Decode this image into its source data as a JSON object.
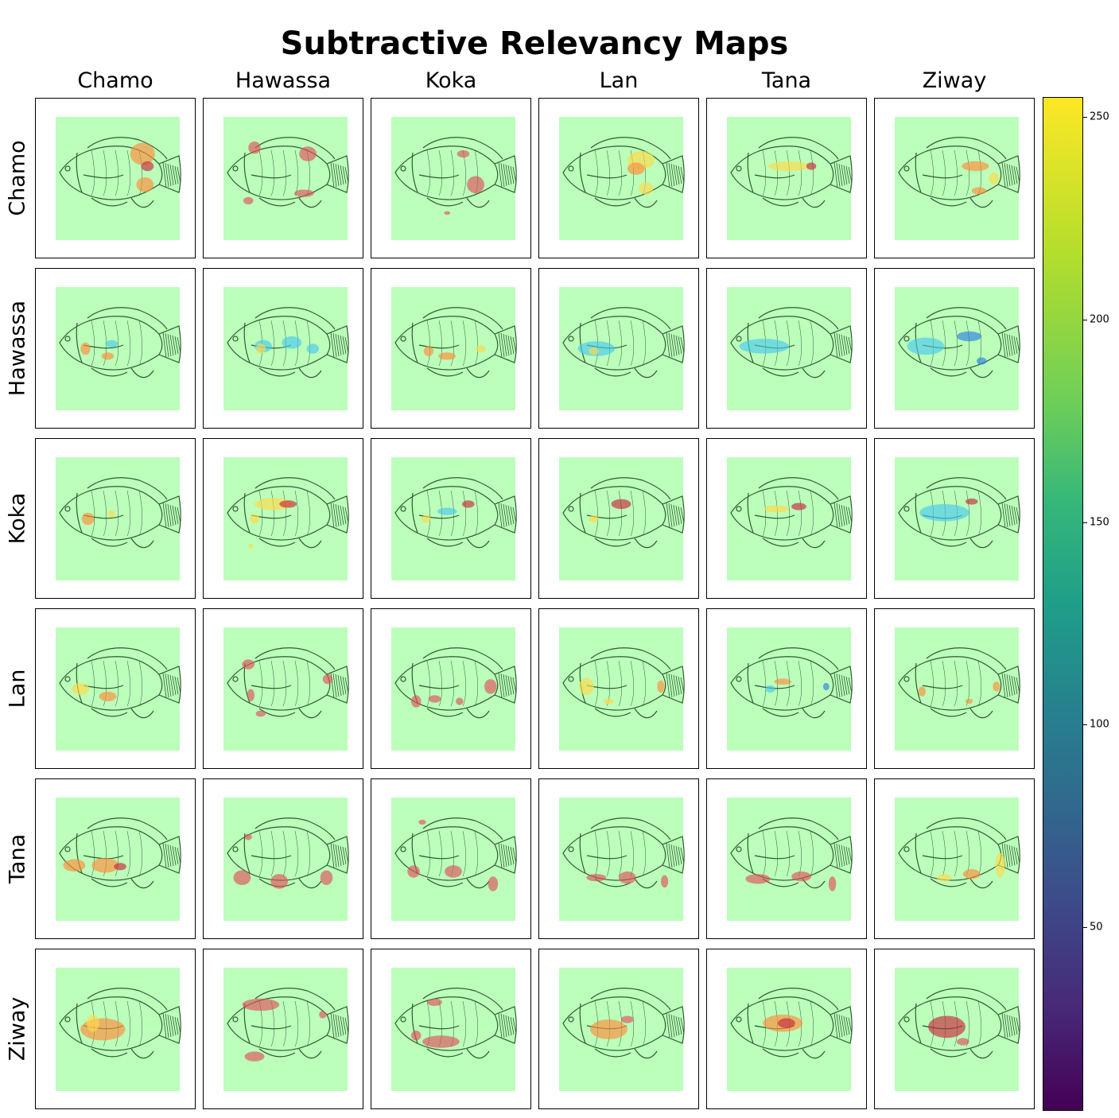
{
  "chart_data": {
    "type": "heatmap",
    "title": "Subtractive Relevancy Maps",
    "columns": [
      "Chamo",
      "Hawassa",
      "Koka",
      "Lan",
      "Tana",
      "Ziway"
    ],
    "rows": [
      "Chamo",
      "Hawassa",
      "Koka",
      "Lan",
      "Tana",
      "Ziway"
    ],
    "colorbar": {
      "colormap": "viridis",
      "range": [
        5,
        255
      ],
      "ticks": [
        50,
        100,
        150,
        200,
        250
      ]
    },
    "cell_overlay": {
      "background": "#bbffbb",
      "image": "fish drawing"
    },
    "cells": [
      [
        [
          {
            "r": "warm",
            "x": 0.7,
            "y": 0.3,
            "w": 0.2,
            "h": 0.18
          },
          {
            "r": "warm",
            "x": 0.72,
            "y": 0.55,
            "w": 0.14,
            "h": 0.12
          },
          {
            "r": "hot",
            "x": 0.74,
            "y": 0.4,
            "w": 0.1,
            "h": 0.08
          }
        ],
        [
          {
            "r": "red",
            "x": 0.25,
            "y": 0.25,
            "w": 0.1,
            "h": 0.1
          },
          {
            "r": "red",
            "x": 0.68,
            "y": 0.3,
            "w": 0.14,
            "h": 0.12
          },
          {
            "r": "red",
            "x": 0.65,
            "y": 0.62,
            "w": 0.16,
            "h": 0.06
          },
          {
            "r": "red",
            "x": 0.2,
            "y": 0.68,
            "w": 0.08,
            "h": 0.06
          }
        ],
        [
          {
            "r": "red",
            "x": 0.68,
            "y": 0.55,
            "w": 0.14,
            "h": 0.14
          },
          {
            "r": "red",
            "x": 0.58,
            "y": 0.3,
            "w": 0.1,
            "h": 0.06
          },
          {
            "r": "red",
            "x": 0.45,
            "y": 0.78,
            "w": 0.05,
            "h": 0.03
          }
        ],
        [
          {
            "r": "yellow",
            "x": 0.66,
            "y": 0.35,
            "w": 0.22,
            "h": 0.15
          },
          {
            "r": "yellow",
            "x": 0.7,
            "y": 0.58,
            "w": 0.12,
            "h": 0.1
          },
          {
            "r": "warm",
            "x": 0.62,
            "y": 0.42,
            "w": 0.14,
            "h": 0.1
          }
        ],
        [
          {
            "r": "yellow",
            "x": 0.5,
            "y": 0.4,
            "w": 0.34,
            "h": 0.08
          },
          {
            "r": "hot",
            "x": 0.68,
            "y": 0.4,
            "w": 0.08,
            "h": 0.06
          }
        ],
        [
          {
            "r": "warm",
            "x": 0.65,
            "y": 0.4,
            "w": 0.22,
            "h": 0.08
          },
          {
            "r": "warm",
            "x": 0.68,
            "y": 0.6,
            "w": 0.12,
            "h": 0.06
          },
          {
            "r": "yellow",
            "x": 0.8,
            "y": 0.5,
            "w": 0.08,
            "h": 0.1
          }
        ]
      ],
      [
        [
          {
            "r": "warm",
            "x": 0.24,
            "y": 0.5,
            "w": 0.08,
            "h": 0.1
          },
          {
            "r": "warm",
            "x": 0.42,
            "y": 0.56,
            "w": 0.1,
            "h": 0.06
          },
          {
            "r": "cyan",
            "x": 0.45,
            "y": 0.46,
            "w": 0.1,
            "h": 0.06
          }
        ],
        [
          {
            "r": "cyan",
            "x": 0.32,
            "y": 0.48,
            "w": 0.14,
            "h": 0.1
          },
          {
            "r": "cyan",
            "x": 0.55,
            "y": 0.45,
            "w": 0.16,
            "h": 0.1
          },
          {
            "r": "yellow",
            "x": 0.3,
            "y": 0.5,
            "w": 0.08,
            "h": 0.08
          },
          {
            "r": "cyan",
            "x": 0.72,
            "y": 0.5,
            "w": 0.1,
            "h": 0.08
          }
        ],
        [
          {
            "r": "warm",
            "x": 0.3,
            "y": 0.52,
            "w": 0.08,
            "h": 0.08
          },
          {
            "r": "warm",
            "x": 0.45,
            "y": 0.56,
            "w": 0.14,
            "h": 0.06
          },
          {
            "r": "yellow",
            "x": 0.72,
            "y": 0.5,
            "w": 0.08,
            "h": 0.06
          }
        ],
        [
          {
            "r": "cyan",
            "x": 0.3,
            "y": 0.5,
            "w": 0.3,
            "h": 0.12
          },
          {
            "r": "yellow",
            "x": 0.28,
            "y": 0.52,
            "w": 0.08,
            "h": 0.06
          }
        ],
        [
          {
            "r": "cyan",
            "x": 0.3,
            "y": 0.48,
            "w": 0.4,
            "h": 0.12
          }
        ],
        [
          {
            "r": "cyan",
            "x": 0.25,
            "y": 0.48,
            "w": 0.3,
            "h": 0.14
          },
          {
            "r": "blue",
            "x": 0.6,
            "y": 0.4,
            "w": 0.2,
            "h": 0.08
          },
          {
            "r": "blue",
            "x": 0.7,
            "y": 0.6,
            "w": 0.08,
            "h": 0.06
          }
        ]
      ],
      [
        [
          {
            "r": "warm",
            "x": 0.26,
            "y": 0.5,
            "w": 0.1,
            "h": 0.1
          },
          {
            "r": "yellow",
            "x": 0.45,
            "y": 0.46,
            "w": 0.06,
            "h": 0.06
          }
        ],
        [
          {
            "r": "yellow",
            "x": 0.4,
            "y": 0.38,
            "w": 0.3,
            "h": 0.1
          },
          {
            "r": "hot",
            "x": 0.52,
            "y": 0.38,
            "w": 0.14,
            "h": 0.06
          },
          {
            "r": "yellow",
            "x": 0.25,
            "y": 0.5,
            "w": 0.08,
            "h": 0.08
          },
          {
            "r": "yellow",
            "x": 0.22,
            "y": 0.72,
            "w": 0.04,
            "h": 0.04
          }
        ],
        [
          {
            "r": "hot",
            "x": 0.62,
            "y": 0.38,
            "w": 0.1,
            "h": 0.06
          },
          {
            "r": "cyan",
            "x": 0.45,
            "y": 0.44,
            "w": 0.16,
            "h": 0.06
          },
          {
            "r": "yellow",
            "x": 0.28,
            "y": 0.5,
            "w": 0.08,
            "h": 0.06
          }
        ],
        [
          {
            "r": "hot",
            "x": 0.5,
            "y": 0.38,
            "w": 0.16,
            "h": 0.08
          },
          {
            "r": "yellow",
            "x": 0.28,
            "y": 0.5,
            "w": 0.08,
            "h": 0.06
          }
        ],
        [
          {
            "r": "hot",
            "x": 0.58,
            "y": 0.4,
            "w": 0.12,
            "h": 0.06
          },
          {
            "r": "yellow",
            "x": 0.4,
            "y": 0.42,
            "w": 0.2,
            "h": 0.06
          }
        ],
        [
          {
            "r": "cyan",
            "x": 0.4,
            "y": 0.45,
            "w": 0.4,
            "h": 0.14
          },
          {
            "r": "hot",
            "x": 0.62,
            "y": 0.36,
            "w": 0.1,
            "h": 0.05
          }
        ]
      ],
      [
        [
          {
            "r": "yellow",
            "x": 0.2,
            "y": 0.5,
            "w": 0.14,
            "h": 0.1
          },
          {
            "r": "warm",
            "x": 0.42,
            "y": 0.56,
            "w": 0.14,
            "h": 0.08
          }
        ],
        [
          {
            "r": "red",
            "x": 0.2,
            "y": 0.3,
            "w": 0.1,
            "h": 0.08
          },
          {
            "r": "red",
            "x": 0.84,
            "y": 0.42,
            "w": 0.08,
            "h": 0.08
          },
          {
            "r": "red",
            "x": 0.3,
            "y": 0.7,
            "w": 0.08,
            "h": 0.05
          },
          {
            "r": "red",
            "x": 0.22,
            "y": 0.55,
            "w": 0.06,
            "h": 0.1
          }
        ],
        [
          {
            "r": "red",
            "x": 0.8,
            "y": 0.48,
            "w": 0.1,
            "h": 0.12
          },
          {
            "r": "red",
            "x": 0.2,
            "y": 0.6,
            "w": 0.08,
            "h": 0.1
          },
          {
            "r": "red",
            "x": 0.35,
            "y": 0.58,
            "w": 0.1,
            "h": 0.06
          },
          {
            "r": "red",
            "x": 0.55,
            "y": 0.6,
            "w": 0.06,
            "h": 0.06
          }
        ],
        [
          {
            "r": "yellow",
            "x": 0.22,
            "y": 0.48,
            "w": 0.12,
            "h": 0.14
          },
          {
            "r": "warm",
            "x": 0.82,
            "y": 0.48,
            "w": 0.06,
            "h": 0.1
          },
          {
            "r": "yellow",
            "x": 0.4,
            "y": 0.6,
            "w": 0.08,
            "h": 0.05
          }
        ],
        [
          {
            "r": "warm",
            "x": 0.45,
            "y": 0.44,
            "w": 0.14,
            "h": 0.05
          },
          {
            "r": "blue",
            "x": 0.8,
            "y": 0.48,
            "w": 0.05,
            "h": 0.06
          },
          {
            "r": "cyan",
            "x": 0.35,
            "y": 0.5,
            "w": 0.08,
            "h": 0.06
          }
        ],
        [
          {
            "r": "warm",
            "x": 0.22,
            "y": 0.52,
            "w": 0.06,
            "h": 0.08
          },
          {
            "r": "warm",
            "x": 0.82,
            "y": 0.48,
            "w": 0.06,
            "h": 0.08
          },
          {
            "r": "warm",
            "x": 0.6,
            "y": 0.6,
            "w": 0.06,
            "h": 0.04
          }
        ]
      ],
      [
        [
          {
            "r": "warm",
            "x": 0.15,
            "y": 0.55,
            "w": 0.18,
            "h": 0.1
          },
          {
            "r": "warm",
            "x": 0.4,
            "y": 0.55,
            "w": 0.22,
            "h": 0.12
          },
          {
            "r": "hot",
            "x": 0.52,
            "y": 0.56,
            "w": 0.1,
            "h": 0.06
          }
        ],
        [
          {
            "r": "red",
            "x": 0.15,
            "y": 0.65,
            "w": 0.14,
            "h": 0.12
          },
          {
            "r": "red",
            "x": 0.45,
            "y": 0.68,
            "w": 0.14,
            "h": 0.12
          },
          {
            "r": "red",
            "x": 0.83,
            "y": 0.65,
            "w": 0.1,
            "h": 0.12
          },
          {
            "r": "red",
            "x": 0.2,
            "y": 0.32,
            "w": 0.06,
            "h": 0.05
          }
        ],
        [
          {
            "r": "red",
            "x": 0.18,
            "y": 0.6,
            "w": 0.1,
            "h": 0.1
          },
          {
            "r": "red",
            "x": 0.5,
            "y": 0.6,
            "w": 0.14,
            "h": 0.1
          },
          {
            "r": "red",
            "x": 0.82,
            "y": 0.7,
            "w": 0.08,
            "h": 0.12
          },
          {
            "r": "red",
            "x": 0.25,
            "y": 0.2,
            "w": 0.06,
            "h": 0.04
          }
        ],
        [
          {
            "r": "red",
            "x": 0.3,
            "y": 0.65,
            "w": 0.16,
            "h": 0.06
          },
          {
            "r": "red",
            "x": 0.55,
            "y": 0.65,
            "w": 0.14,
            "h": 0.1
          },
          {
            "r": "red",
            "x": 0.85,
            "y": 0.68,
            "w": 0.06,
            "h": 0.1
          }
        ],
        [
          {
            "r": "red",
            "x": 0.25,
            "y": 0.66,
            "w": 0.2,
            "h": 0.08
          },
          {
            "r": "red",
            "x": 0.6,
            "y": 0.64,
            "w": 0.16,
            "h": 0.08
          },
          {
            "r": "red",
            "x": 0.85,
            "y": 0.7,
            "w": 0.06,
            "h": 0.12
          }
        ],
        [
          {
            "r": "yellow",
            "x": 0.85,
            "y": 0.55,
            "w": 0.08,
            "h": 0.2
          },
          {
            "r": "warm",
            "x": 0.62,
            "y": 0.62,
            "w": 0.14,
            "h": 0.08
          },
          {
            "r": "yellow",
            "x": 0.4,
            "y": 0.65,
            "w": 0.12,
            "h": 0.06
          }
        ]
      ],
      [
        [
          {
            "r": "warm",
            "x": 0.38,
            "y": 0.5,
            "w": 0.36,
            "h": 0.18
          },
          {
            "r": "yellow",
            "x": 0.3,
            "y": 0.45,
            "w": 0.1,
            "h": 0.14
          }
        ],
        [
          {
            "r": "red",
            "x": 0.3,
            "y": 0.3,
            "w": 0.3,
            "h": 0.1
          },
          {
            "r": "red",
            "x": 0.25,
            "y": 0.72,
            "w": 0.16,
            "h": 0.08
          },
          {
            "r": "red",
            "x": 0.8,
            "y": 0.38,
            "w": 0.06,
            "h": 0.06
          }
        ],
        [
          {
            "r": "red",
            "x": 0.4,
            "y": 0.6,
            "w": 0.3,
            "h": 0.1
          },
          {
            "r": "red",
            "x": 0.35,
            "y": 0.28,
            "w": 0.12,
            "h": 0.06
          },
          {
            "r": "red",
            "x": 0.2,
            "y": 0.55,
            "w": 0.08,
            "h": 0.08
          }
        ],
        [
          {
            "r": "warm",
            "x": 0.4,
            "y": 0.5,
            "w": 0.3,
            "h": 0.16
          },
          {
            "r": "red",
            "x": 0.55,
            "y": 0.42,
            "w": 0.1,
            "h": 0.06
          }
        ],
        [
          {
            "r": "warm",
            "x": 0.45,
            "y": 0.45,
            "w": 0.32,
            "h": 0.14
          },
          {
            "r": "hot",
            "x": 0.48,
            "y": 0.45,
            "w": 0.14,
            "h": 0.08
          }
        ],
        [
          {
            "r": "hot",
            "x": 0.42,
            "y": 0.48,
            "w": 0.3,
            "h": 0.18
          },
          {
            "r": "red",
            "x": 0.55,
            "y": 0.6,
            "w": 0.1,
            "h": 0.06
          }
        ]
      ]
    ]
  }
}
